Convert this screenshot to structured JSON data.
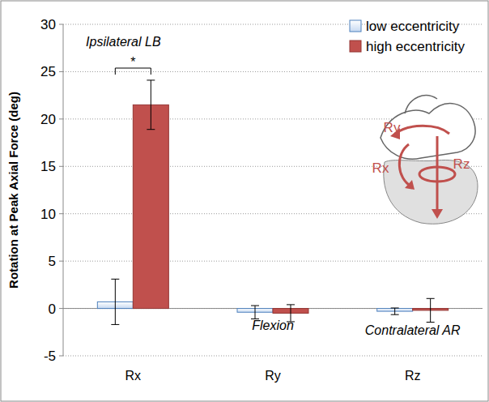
{
  "chart_data": {
    "type": "bar",
    "y_label": "Rotation at Peak Axial Force (deg)",
    "categories": [
      "Rx",
      "Ry",
      "Rz"
    ],
    "series": [
      {
        "name": "low eccentricity",
        "color": "#c6d9f1",
        "values": [
          0.7,
          -0.4,
          -0.3
        ],
        "errors": [
          2.4,
          0.7,
          0.35
        ]
      },
      {
        "name": "high eccentricity",
        "color": "#c0504d",
        "values": [
          21.5,
          -0.5,
          -0.2
        ],
        "errors": [
          2.6,
          0.9,
          1.25
        ]
      }
    ],
    "ylim": [
      -5,
      30
    ],
    "yticks": [
      -5,
      0,
      5,
      10,
      15,
      20,
      25,
      30
    ],
    "grid": true,
    "legend": "top-right",
    "annotations": [
      {
        "text": "Ipsilateral LB",
        "category": "Rx"
      },
      {
        "text": "Flexion",
        "category": "Ry"
      },
      {
        "text": "Contralateral AR",
        "category": "Rz"
      }
    ],
    "significance": [
      {
        "category": "Rx",
        "label": "*"
      }
    ],
    "diagram_labels": [
      "Ry",
      "Rx",
      "Rz"
    ]
  }
}
